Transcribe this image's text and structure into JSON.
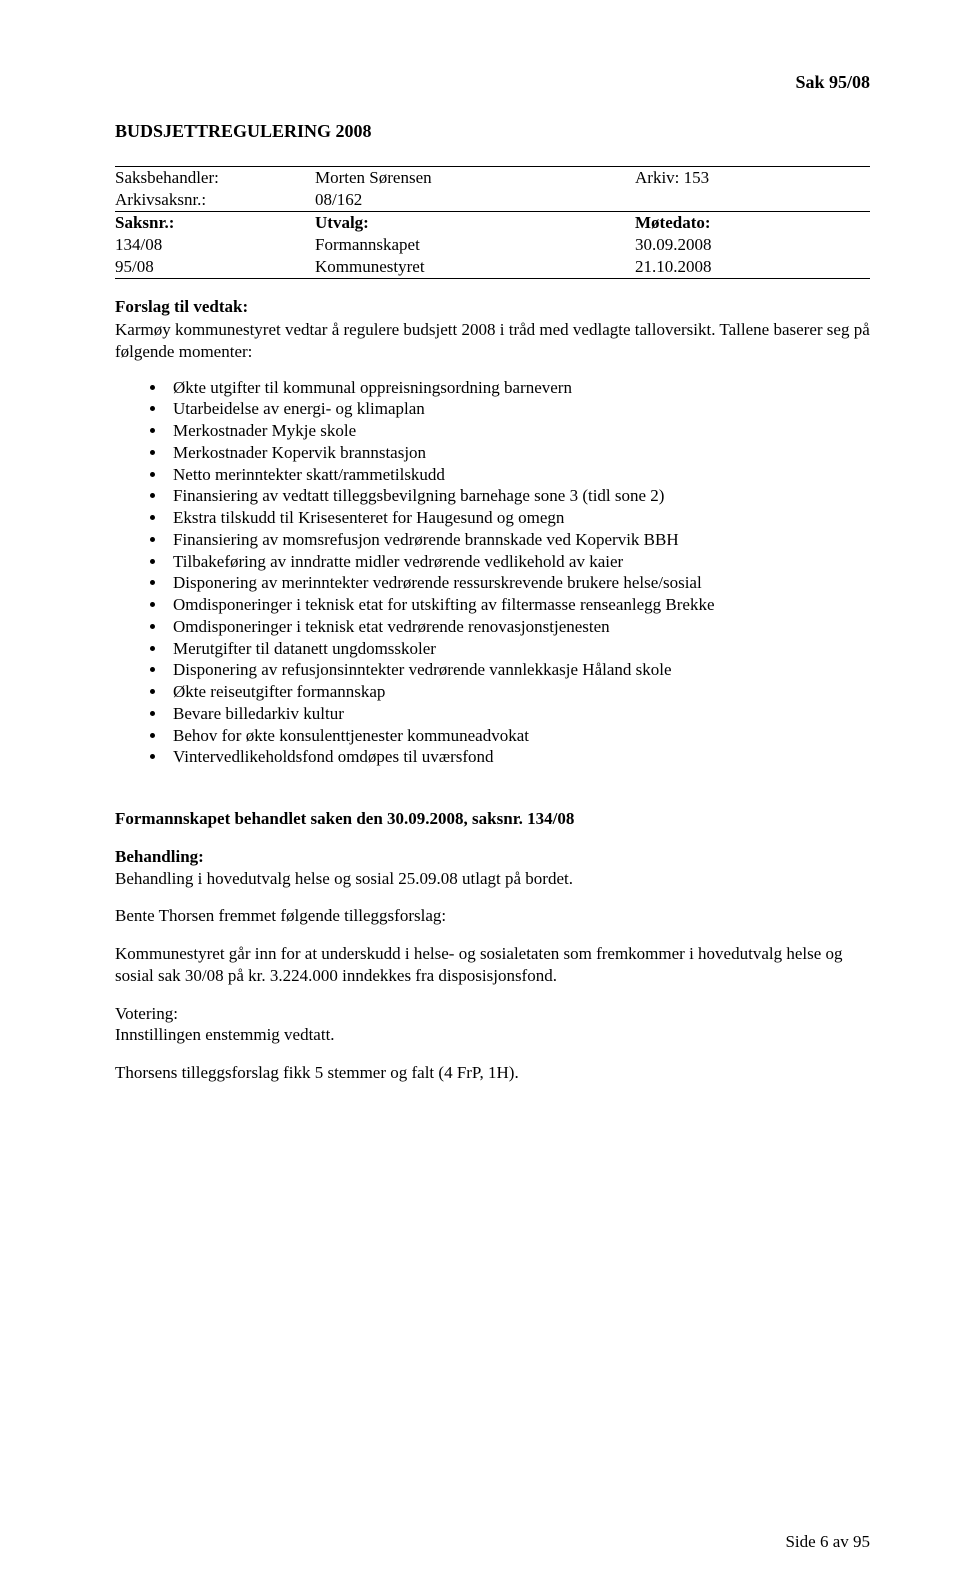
{
  "colors": {
    "text": "#000000",
    "background": "#ffffff",
    "rule": "#000000"
  },
  "typography": {
    "family": "Times New Roman",
    "body_size_pt": 13,
    "heading_weight": "bold"
  },
  "header": {
    "case_ref": "Sak  95/08",
    "title": "BUDSJETTREGULERING 2008"
  },
  "meta": {
    "labels": {
      "saksbehandler": "Saksbehandler:",
      "arkivsaksnr": "Arkivsaksnr.:",
      "saksnr": "Saksnr.:",
      "utvalg": "Utvalg:",
      "motedato": "Møtedato:",
      "arkiv": "Arkiv: 153"
    },
    "values": {
      "saksbehandler": "Morten Sørensen",
      "arkivsaksnr": "08/162"
    },
    "rows": [
      {
        "saksnr": "134/08",
        "utvalg": "Formannskapet",
        "dato": "30.09.2008"
      },
      {
        "saksnr": "95/08",
        "utvalg": "Kommunestyret",
        "dato": "21.10.2008"
      }
    ]
  },
  "proposal": {
    "heading": "Forslag til vedtak:",
    "intro": "Karmøy kommunestyret vedtar å regulere budsjett 2008 i tråd med vedlagte talloversikt. Tallene baserer seg på følgende momenter:",
    "items": [
      "Økte utgifter til kommunal oppreisningsordning barnevern",
      "Utarbeidelse av energi- og klimaplan",
      "Merkostnader Mykje skole",
      "Merkostnader Kopervik brannstasjon",
      "Netto merinntekter skatt/rammetilskudd",
      "Finansiering av vedtatt tilleggsbevilgning barnehage sone 3 (tidl sone 2)",
      "Ekstra tilskudd til Krisesenteret for Haugesund og omegn",
      "Finansiering av momsrefusjon vedrørende brannskade ved Kopervik BBH",
      "Tilbakeføring av inndratte midler vedrørende vedlikehold av kaier",
      "Disponering av merinntekter vedrørende ressurskrevende brukere helse/sosial",
      "Omdisponeringer i teknisk etat for utskifting av filtermasse renseanlegg Brekke",
      "Omdisponeringer i teknisk etat vedrørende renovasjonstjenesten",
      "Merutgifter til datanett ungdomsskoler",
      "Disponering av refusjonsinntekter vedrørende vannlekkasje Håland skole",
      "Økte reiseutgifter formannskap",
      "Bevare billedarkiv kultur",
      "Behov for økte konsulenttjenester kommuneadvokat",
      "Vintervedlikeholdsfond omdøpes til uværsfond"
    ]
  },
  "handling": {
    "title": "Formannskapet behandlet saken den 30.09.2008, saksnr. 134/08",
    "heading": "Behandling:",
    "line1": "Behandling i hovedutvalg helse og sosial 25.09.08 utlagt på bordet.",
    "line2": "Bente Thorsen fremmet følgende tilleggsforslag:",
    "line3": "Kommunestyret går inn for at underskudd i helse- og sosialetaten som fremkommer i hovedutvalg helse og sosial sak 30/08 på kr. 3.224.000 inndekkes fra disposisjonsfond.",
    "votering_label": "Votering:",
    "votering_text": "Innstillingen enstemmig vedtatt.",
    "thorsen": "Thorsens tilleggsforslag fikk 5 stemmer og falt (4 FrP, 1H)."
  },
  "footer": {
    "text": "Side 6 av 95"
  }
}
